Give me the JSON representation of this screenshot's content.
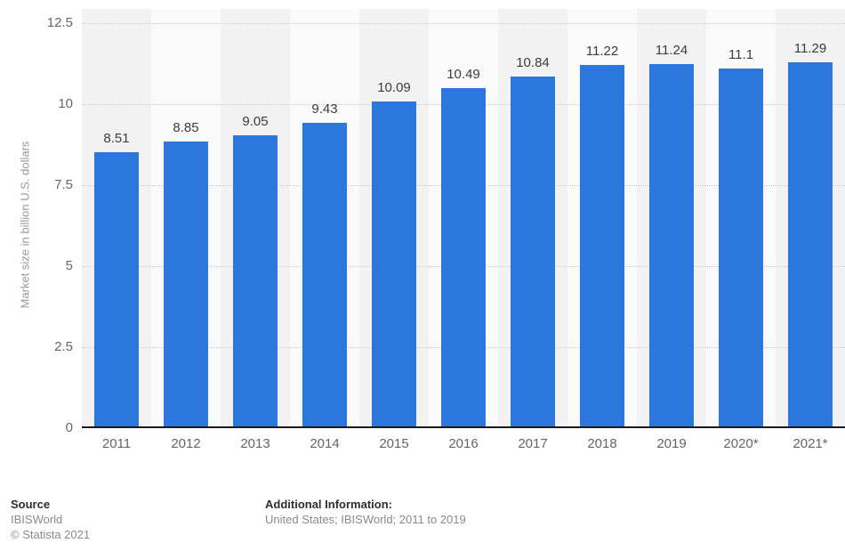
{
  "chart_data": {
    "type": "bar",
    "categories": [
      "2011",
      "2012",
      "2013",
      "2014",
      "2015",
      "2016",
      "2017",
      "2018",
      "2019",
      "2020*",
      "2021*"
    ],
    "values": [
      8.51,
      8.85,
      9.05,
      9.43,
      10.09,
      10.49,
      10.84,
      11.22,
      11.24,
      11.1,
      11.29
    ],
    "value_labels": [
      "8.51",
      "8.85",
      "9.05",
      "9.43",
      "10.09",
      "10.49",
      "10.84",
      "11.22",
      "11.24",
      "11.1",
      "11.29"
    ],
    "title": "",
    "xlabel": "",
    "ylabel": "Market size in billion U.S. dollars",
    "ylim": [
      0,
      12.5
    ],
    "yticks": [
      0,
      2.5,
      5,
      7.5,
      10,
      12.5
    ],
    "ytick_labels": [
      "0",
      "2.5",
      "5",
      "7.5",
      "10",
      "12.5"
    ],
    "grid": "horizontal-dotted",
    "legend": "none",
    "bar_color": "#2c77dc",
    "stripe_color_odd": "#f2f2f2",
    "stripe_color_even": "#fafafa"
  },
  "footer": {
    "source_label": "Source",
    "source_name": "IBISWorld",
    "copyright": "© Statista 2021",
    "additional_label": "Additional Information:",
    "additional_text": "United States; IBISWorld; 2011 to 2019"
  }
}
